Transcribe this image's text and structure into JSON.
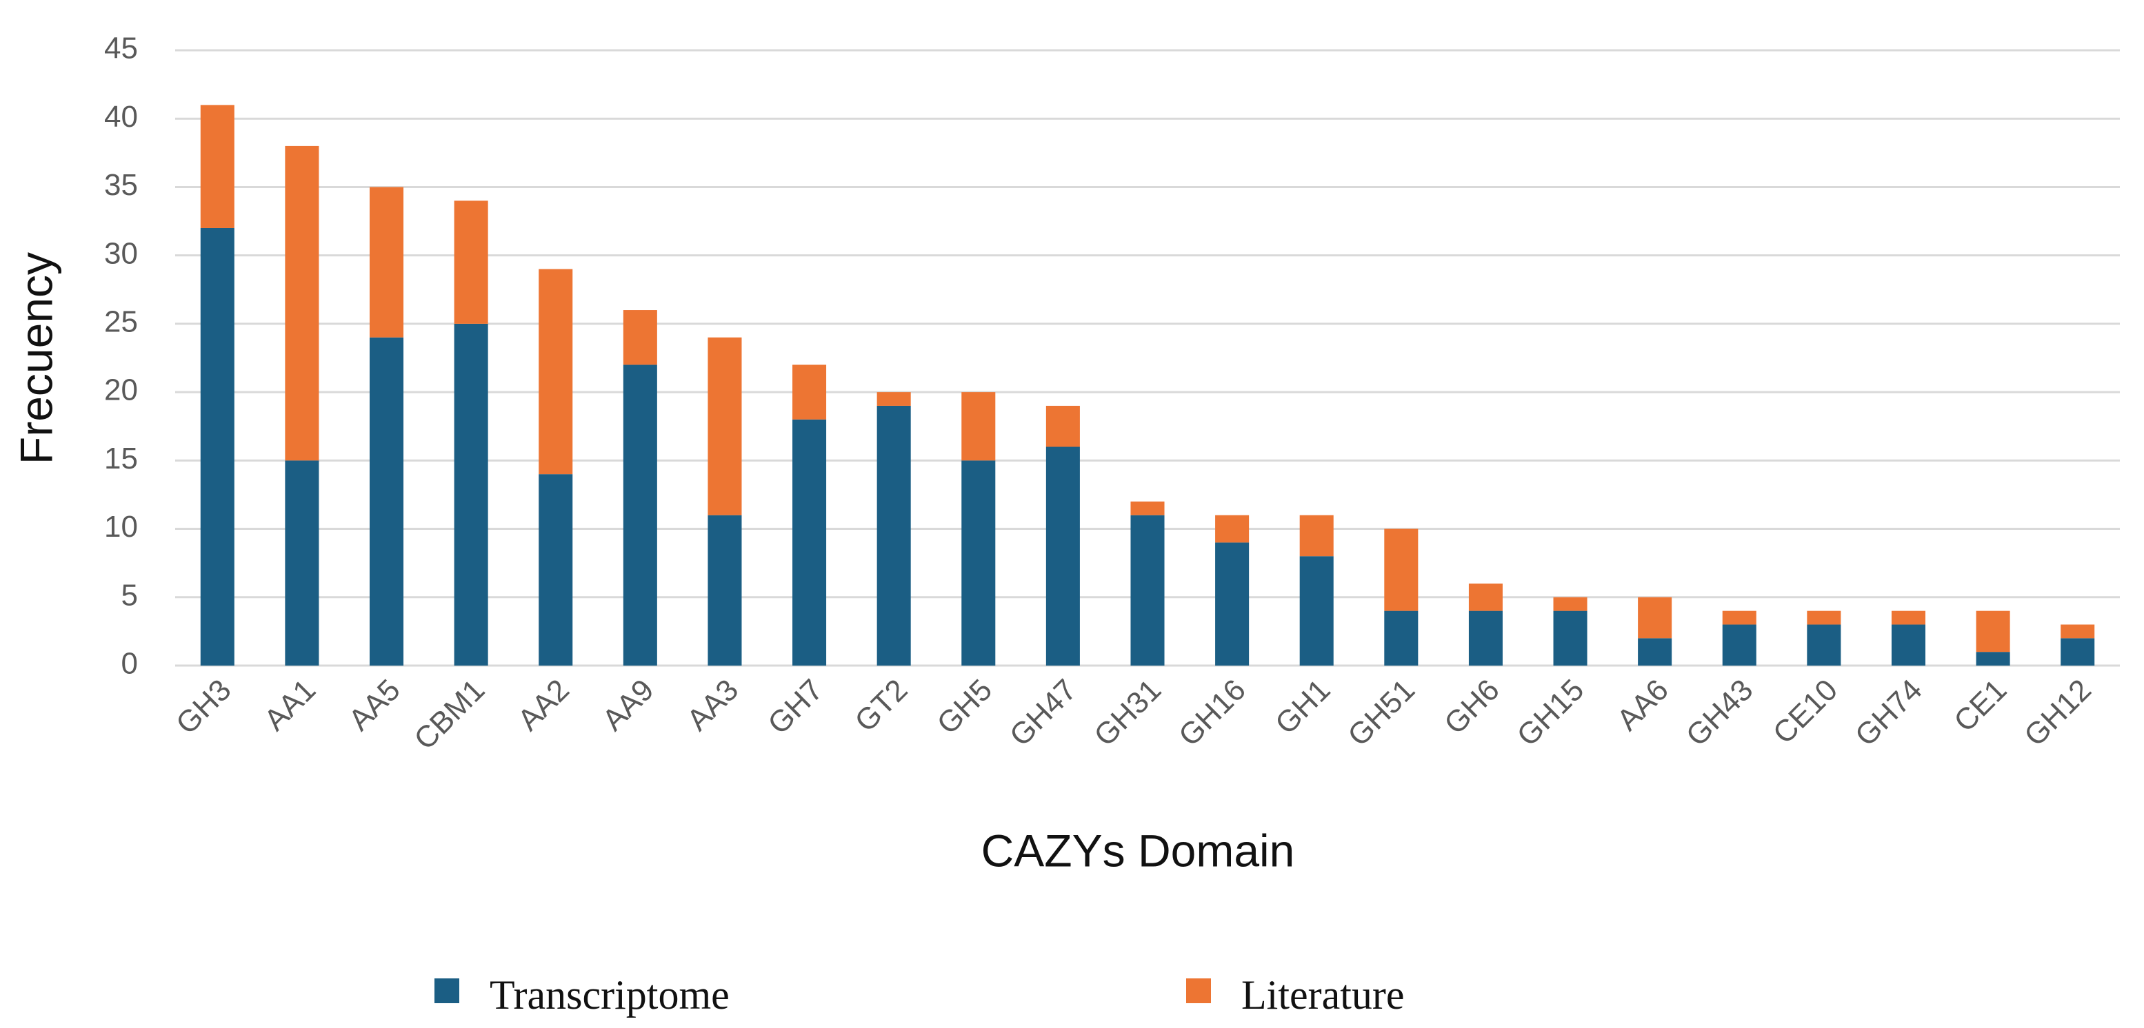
{
  "chart_data": {
    "type": "stacked_bar",
    "x_label": "CAZYs Domain",
    "y_label": "Frecuency",
    "categories": [
      "GH3",
      "AA1",
      "AA5",
      "CBM1",
      "AA2",
      "AA9",
      "AA3",
      "GH7",
      "GT2",
      "GH5",
      "GH47",
      "GH31",
      "GH16",
      "GH1",
      "GH51",
      "GH6",
      "GH15",
      "AA6",
      "GH43",
      "CE10",
      "GH74",
      "CE1",
      "GH12"
    ],
    "series": [
      {
        "name": "Transcriptome",
        "color": "#1b5e84",
        "values": [
          32,
          15,
          24,
          25,
          14,
          22,
          11,
          18,
          19,
          15,
          16,
          11,
          9,
          8,
          4,
          4,
          4,
          2,
          3,
          3,
          3,
          1,
          2
        ]
      },
      {
        "name": "Literature",
        "color": "#ed7533",
        "values": [
          9,
          23,
          11,
          9,
          15,
          4,
          13,
          4,
          1,
          5,
          3,
          1,
          2,
          3,
          6,
          2,
          1,
          3,
          1,
          1,
          1,
          3,
          1
        ]
      }
    ],
    "ylim": [
      0,
      45
    ],
    "yticks": [
      0,
      5,
      10,
      15,
      20,
      25,
      30,
      35,
      40,
      45
    ],
    "grid": true
  }
}
